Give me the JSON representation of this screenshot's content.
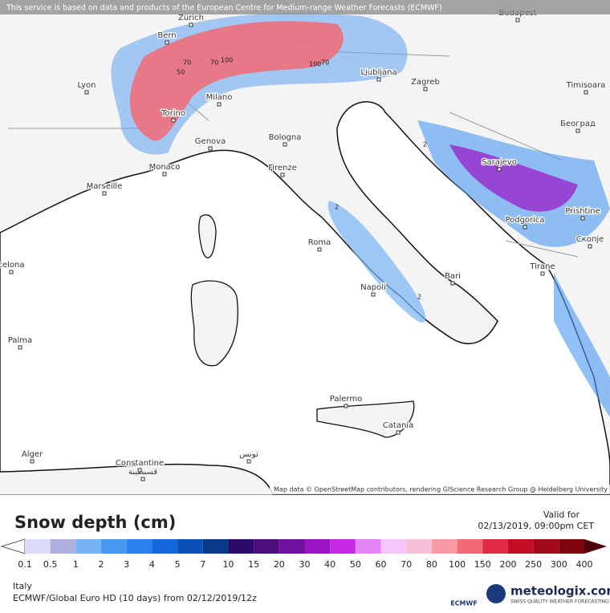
{
  "header": {
    "disclaimer": "This service is based on data and products of the European Centre for Medium-range Weather Forecasts (ECMWF)"
  },
  "map": {
    "cities": [
      "Zürich",
      "Budapest",
      "Bern",
      "Lyon",
      "Ljubljana",
      "Zagreb",
      "Timisoara",
      "Milano",
      "Torino",
      "Београд",
      "Genova",
      "Bologna",
      "Monaco",
      "Marseille",
      "Firenze",
      "Sarajevo",
      "Podgorica",
      "Prishtine",
      "Roma",
      "Скопје",
      "celona",
      "Tirane",
      "Bari",
      "Napoli",
      "Palma",
      "Palermo",
      "Catania",
      "Alger",
      "Constantine",
      "قسنطينة",
      "تونس"
    ],
    "contour_labels": [
      "70",
      "100",
      "50",
      "70",
      "100",
      "70",
      "2",
      "2",
      "2"
    ],
    "attribution": "Map data © OpenStreetMap contributors, rendering GIScience Research Group @ Heidelberg University"
  },
  "legend": {
    "title": "Snow depth (cm)",
    "ticks": [
      0.1,
      0.5,
      1,
      2,
      3,
      4,
      5,
      7,
      10,
      15,
      20,
      30,
      40,
      50,
      60,
      70,
      80,
      100,
      150,
      200,
      250,
      300,
      400
    ],
    "colors": [
      "#dcdcf8",
      "#b0b0e0",
      "#78b4f4",
      "#4898f0",
      "#2a80ee",
      "#1468dc",
      "#0c50b8",
      "#0a3888",
      "#2c0c68",
      "#4c0c7c",
      "#7010a0",
      "#9a14c4",
      "#c428e4",
      "#e284f4",
      "#f4c4fa",
      "#f8c0d8",
      "#f89aa4",
      "#f26a76",
      "#e02a46",
      "#c40c24",
      "#a20818",
      "#80040e"
    ],
    "over_color": "#50000a"
  },
  "valid": {
    "label": "Valid for",
    "datetime": "02/13/2019, 09:00pm CET"
  },
  "footer": {
    "region": "Italy",
    "model": "ECMWF/Global Euro HD (10 days) from 02/12/2019/12z",
    "logo": "meteologix.com",
    "tagline": "SWISS QUALITY WEATHER FORECASTING",
    "ecmwf": "ECMWF"
  }
}
